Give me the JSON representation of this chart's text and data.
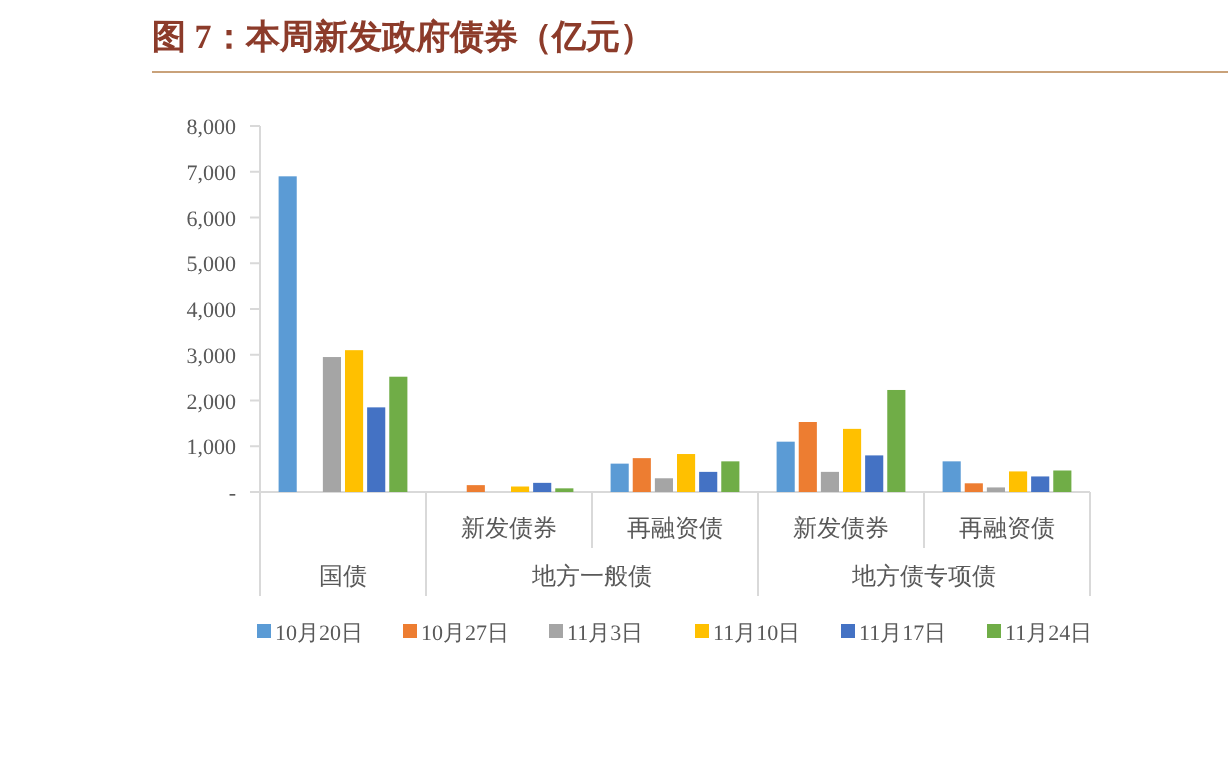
{
  "chart_data": {
    "type": "bar",
    "title": "图 7：本周新发政府债券（亿元）",
    "categories": [
      null,
      "新发债券",
      "再融资债",
      "新发债券",
      "再融资债"
    ],
    "annotations": [
      "国债",
      "地方一般债",
      "地方债专项债"
    ],
    "series": [
      {
        "name": "10月20日",
        "color": "#5b9bd5",
        "values": [
          6900,
          0,
          620,
          1100,
          670
        ]
      },
      {
        "name": "10月27日",
        "color": "#ed7d31",
        "values": [
          0,
          150,
          740,
          1530,
          190
        ]
      },
      {
        "name": "11月3日",
        "color": "#a5a5a5",
        "values": [
          2950,
          0,
          300,
          440,
          100
        ]
      },
      {
        "name": "11月10日",
        "color": "#ffc000",
        "values": [
          3100,
          120,
          830,
          1380,
          450
        ]
      },
      {
        "name": "11月17日",
        "color": "#4472c4",
        "values": [
          1850,
          200,
          440,
          800,
          340
        ]
      },
      {
        "name": "11月24日",
        "color": "#70ad47",
        "values": [
          2520,
          80,
          670,
          2230,
          470
        ]
      }
    ],
    "ylim": [
      0,
      8000
    ],
    "yticks": [
      {
        "value": 0,
        "label": "-"
      },
      {
        "value": 1000,
        "label": "1,000"
      },
      {
        "value": 2000,
        "label": "2,000"
      },
      {
        "value": 3000,
        "label": "3,000"
      },
      {
        "value": 4000,
        "label": "4,000"
      },
      {
        "value": 5000,
        "label": "5,000"
      },
      {
        "value": 6000,
        "label": "6,000"
      },
      {
        "value": 7000,
        "label": "7,000"
      },
      {
        "value": 8000,
        "label": "8,000"
      }
    ],
    "legend": "bottom"
  }
}
